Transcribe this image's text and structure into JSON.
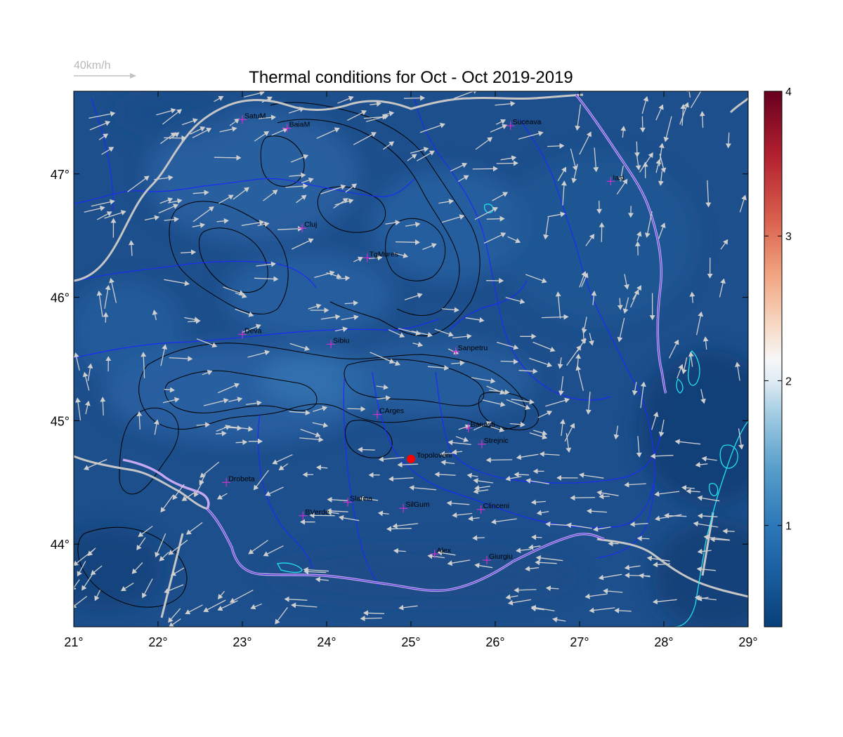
{
  "title": "Thermal conditions for Oct - Oct  2019-2019",
  "wind_scale": {
    "label": "40km/h",
    "speed_kmh": 40
  },
  "map": {
    "lon_range": [
      21,
      29
    ],
    "lat_range": [
      43.33,
      47.67
    ],
    "x_ticks": [
      {
        "value": 21,
        "label": "21°"
      },
      {
        "value": 22,
        "label": "22°"
      },
      {
        "value": 23,
        "label": "23°"
      },
      {
        "value": 24,
        "label": "24°"
      },
      {
        "value": 25,
        "label": "25°"
      },
      {
        "value": 26,
        "label": "26°"
      },
      {
        "value": 27,
        "label": "27°"
      },
      {
        "value": 28,
        "label": "28°"
      },
      {
        "value": 29,
        "label": "29°"
      }
    ],
    "y_ticks": [
      {
        "value": 44,
        "label": "44°"
      },
      {
        "value": 45,
        "label": "45°"
      },
      {
        "value": 46,
        "label": "46°"
      },
      {
        "value": 47,
        "label": "47°"
      }
    ]
  },
  "colorbar": {
    "range": [
      0.3,
      4.0
    ],
    "colormap": "RdBu_r",
    "ticks": [
      {
        "value": 1,
        "label": "1"
      },
      {
        "value": 2,
        "label": "2"
      },
      {
        "value": 3,
        "label": "3"
      },
      {
        "value": 4,
        "label": "4"
      }
    ]
  },
  "highlight_point": {
    "name": "Topoloveni",
    "lon": 25.0,
    "lat": 44.69,
    "color": "#ff0000"
  },
  "cities": [
    {
      "name": "SatuM",
      "lon": 23.0,
      "lat": 47.44
    },
    {
      "name": "BaiaM",
      "lon": 23.53,
      "lat": 47.37
    },
    {
      "name": "Suceava",
      "lon": 26.18,
      "lat": 47.39
    },
    {
      "name": "Iasi",
      "lon": 27.37,
      "lat": 46.94
    },
    {
      "name": "Cluj",
      "lon": 23.71,
      "lat": 46.56
    },
    {
      "name": "TgMures",
      "lon": 24.48,
      "lat": 46.32
    },
    {
      "name": "Deva",
      "lon": 23.0,
      "lat": 45.7
    },
    {
      "name": "Sibiu",
      "lon": 24.05,
      "lat": 45.62
    },
    {
      "name": "Sanpetru",
      "lon": 25.53,
      "lat": 45.56
    },
    {
      "name": "CArges",
      "lon": 24.6,
      "lat": 45.05
    },
    {
      "name": "Banesti",
      "lon": 25.68,
      "lat": 44.94
    },
    {
      "name": "Strejnic",
      "lon": 25.84,
      "lat": 44.81
    },
    {
      "name": "Drobeta",
      "lon": 22.81,
      "lat": 44.5
    },
    {
      "name": "Slatina",
      "lon": 24.25,
      "lat": 44.34
    },
    {
      "name": "SilGum",
      "lon": 24.91,
      "lat": 44.29
    },
    {
      "name": "Clinceni",
      "lon": 25.83,
      "lat": 44.28
    },
    {
      "name": "BVerde",
      "lon": 23.72,
      "lat": 44.23
    },
    {
      "name": "Alex",
      "lon": 25.28,
      "lat": 43.92
    },
    {
      "name": "Giurgiu",
      "lon": 25.9,
      "lat": 43.87
    }
  ],
  "colors": {
    "field": "#1d4f8c",
    "river": "#1c2cf5",
    "border": "#c6c6c6",
    "romania_border": "#c8a8f0",
    "lake": "#22e0f0",
    "contour": "#000000",
    "city_marker": "#cc33cc",
    "wind_arrow": "#cfcfcf"
  }
}
